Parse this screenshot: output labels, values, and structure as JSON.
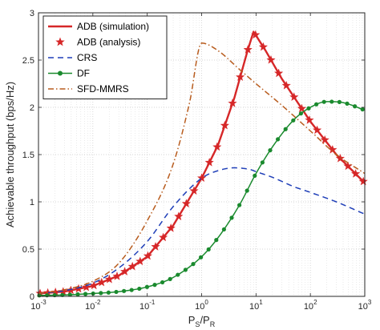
{
  "chart_data": {
    "type": "line",
    "title": "",
    "xlabel": "P_S/P_R",
    "xlabel_main": "P",
    "xlabel_sub1": "S",
    "xlabel_slash": "/P",
    "xlabel_sub2": "R",
    "ylabel": "Achievable throughput (bps/Hz)",
    "xscale": "log",
    "xlim": [
      0.001,
      1000
    ],
    "ylim": [
      0,
      3
    ],
    "grid": true,
    "legend_position": "top-left",
    "x_ticks": [
      {
        "value": 0.001,
        "base": "10",
        "exp": "-3"
      },
      {
        "value": 0.01,
        "base": "10",
        "exp": "-2"
      },
      {
        "value": 0.1,
        "base": "10",
        "exp": "-1"
      },
      {
        "value": 1,
        "base": "10",
        "exp": "0"
      },
      {
        "value": 10,
        "base": "10",
        "exp": "1"
      },
      {
        "value": 100,
        "base": "10",
        "exp": "2"
      },
      {
        "value": 1000,
        "base": "10",
        "exp": "3"
      }
    ],
    "y_ticks": [
      {
        "value": 0,
        "label": "0"
      },
      {
        "value": 0.5,
        "label": "0.5"
      },
      {
        "value": 1,
        "label": "1"
      },
      {
        "value": 1.5,
        "label": "1.5"
      },
      {
        "value": 2,
        "label": "2"
      },
      {
        "value": 2.5,
        "label": "2.5"
      },
      {
        "value": 3,
        "label": "3"
      }
    ],
    "series": [
      {
        "name": "ADB (simulation)",
        "color": "#d62728",
        "line": "solid",
        "marker": "none",
        "x": [
          0.001,
          0.003,
          0.01,
          0.03,
          0.1,
          0.3,
          1,
          2,
          4,
          7,
          9,
          10,
          15,
          30,
          100,
          300,
          1000
        ],
        "y": [
          0.03,
          0.05,
          0.11,
          0.22,
          0.42,
          0.75,
          1.25,
          1.6,
          2.1,
          2.6,
          2.8,
          2.76,
          2.6,
          2.3,
          1.85,
          1.5,
          1.2
        ]
      },
      {
        "name": "ADB (analysis)",
        "color": "#d62728",
        "line": "none",
        "marker": "star",
        "x": [
          0.001,
          0.003,
          0.01,
          0.03,
          0.1,
          0.3,
          1,
          2,
          4,
          7,
          9,
          10,
          15,
          30,
          100,
          300,
          1000
        ],
        "y": [
          0.03,
          0.05,
          0.11,
          0.22,
          0.42,
          0.75,
          1.25,
          1.6,
          2.1,
          2.6,
          2.8,
          2.76,
          2.6,
          2.3,
          1.85,
          1.5,
          1.2
        ]
      },
      {
        "name": "CRS",
        "color": "#1f3fb8",
        "line": "dashed",
        "marker": "none",
        "x": [
          0.001,
          0.003,
          0.01,
          0.03,
          0.1,
          0.3,
          1,
          2,
          4,
          8,
          10,
          20,
          50,
          100,
          300,
          1000
        ],
        "y": [
          0.03,
          0.06,
          0.14,
          0.3,
          0.58,
          0.95,
          1.25,
          1.33,
          1.36,
          1.34,
          1.32,
          1.26,
          1.16,
          1.1,
          1.0,
          0.87
        ]
      },
      {
        "name": "DF",
        "color": "#1a8a2e",
        "line": "solid",
        "marker": "dot",
        "x": [
          0.001,
          0.003,
          0.01,
          0.03,
          0.1,
          0.3,
          1,
          2,
          5,
          10,
          20,
          50,
          100,
          200,
          400,
          1000
        ],
        "y": [
          0.01,
          0.015,
          0.03,
          0.05,
          0.1,
          0.2,
          0.42,
          0.62,
          0.97,
          1.3,
          1.58,
          1.87,
          2.0,
          2.06,
          2.05,
          1.97
        ]
      },
      {
        "name": "SFD-MMRS",
        "color": "#b85c1e",
        "line": "dashdot",
        "marker": "none",
        "x": [
          0.001,
          0.003,
          0.01,
          0.03,
          0.1,
          0.3,
          0.6,
          1,
          2,
          5,
          10,
          30,
          100,
          300,
          1000
        ],
        "y": [
          0.03,
          0.07,
          0.16,
          0.35,
          0.8,
          1.4,
          2.05,
          2.68,
          2.6,
          2.4,
          2.25,
          2.02,
          1.75,
          1.5,
          1.3
        ]
      }
    ]
  }
}
